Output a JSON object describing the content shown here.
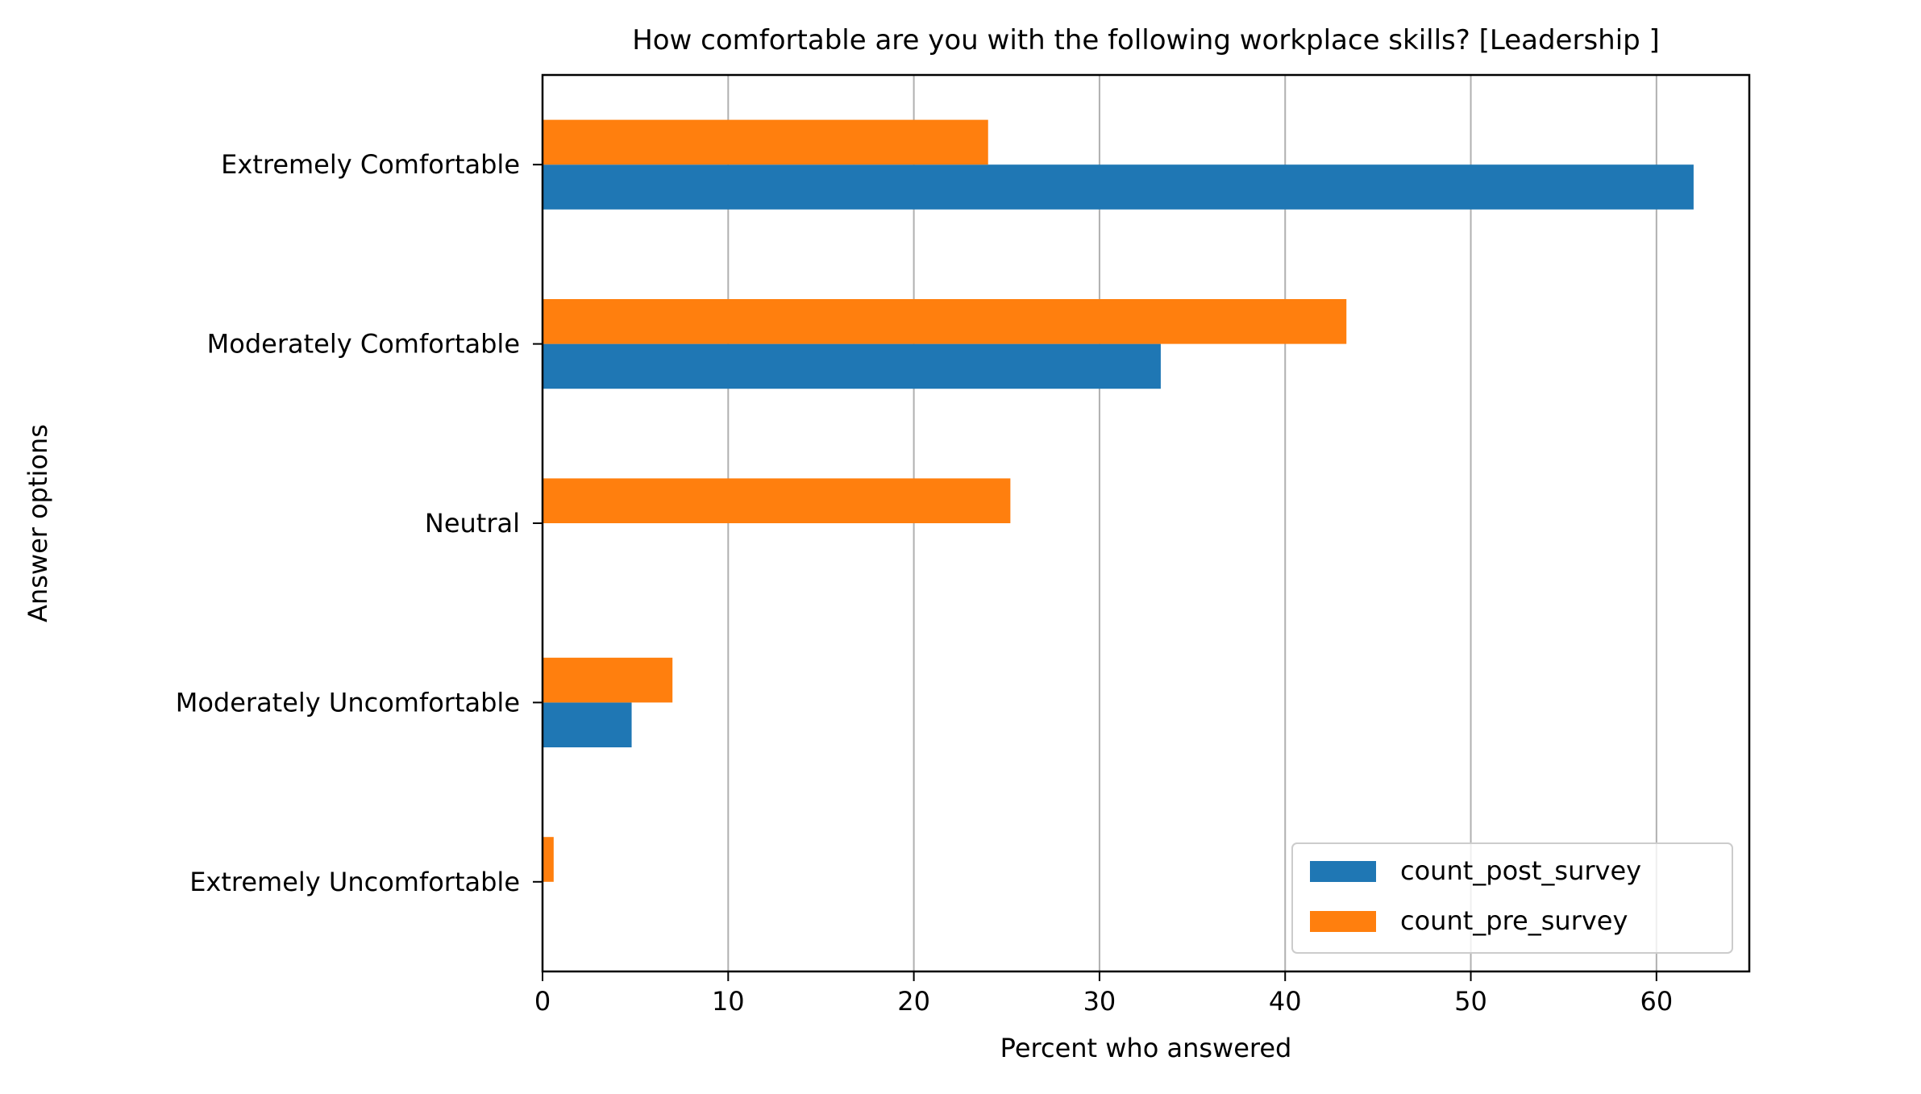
{
  "chart_data": {
    "type": "bar",
    "orientation": "horizontal",
    "title": "How comfortable are you with the following workplace skills? [Leadership ]",
    "xlabel": "Percent who answered",
    "ylabel": "Answer options",
    "categories": [
      "Extremely Comfortable",
      "Moderately Comfortable",
      "Neutral",
      "Moderately Uncomfortable",
      "Extremely Uncomfortable"
    ],
    "series": [
      {
        "name": "count_post_survey",
        "color": "#1f77b4",
        "values": [
          62.0,
          33.3,
          0,
          4.8,
          0
        ]
      },
      {
        "name": "count_pre_survey",
        "color": "#ff7f0e",
        "values": [
          24.0,
          43.3,
          25.2,
          7.0,
          0.6
        ]
      }
    ],
    "xlim": [
      0,
      65
    ],
    "xticks": [
      0,
      10,
      20,
      30,
      40,
      50,
      60
    ],
    "grid": "x-major",
    "legend_position": "lower-right"
  }
}
